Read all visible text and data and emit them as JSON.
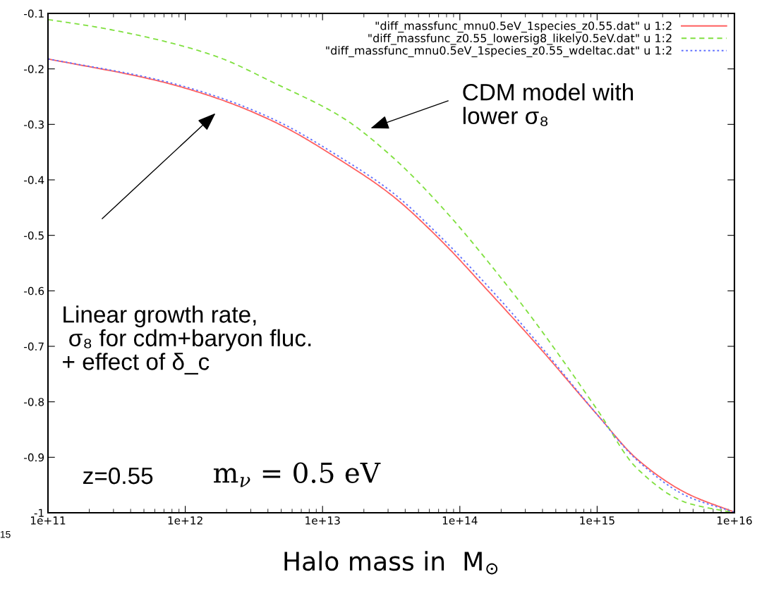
{
  "chart_data": {
    "type": "line",
    "xlabel": "Halo mass in  M$_{⊙}$",
    "log": "x",
    "legend": "top right",
    "grid": false,
    "xlim": [
      100000000000.0,
      1e+16
    ],
    "ylim": [
      -1,
      -0.1
    ],
    "xticks": [
      {
        "value": 100000000000.0,
        "label": "1e+11"
      },
      {
        "value": 1000000000000.0,
        "label": "1e+12"
      },
      {
        "value": 10000000000000.0,
        "label": "1e+13"
      },
      {
        "value": 100000000000000.0,
        "label": "1e+14"
      },
      {
        "value": 1000000000000000.0,
        "label": "1e+15"
      },
      {
        "value": 1e+16,
        "label": "1e+16"
      }
    ],
    "yticks": [
      -1,
      -0.9,
      -0.8,
      -0.7,
      -0.6,
      -0.5,
      -0.4,
      -0.3,
      -0.2,
      -0.1
    ],
    "series": [
      {
        "name": "\"diff_massfunc_mnu0.5eV_1species_z0.55.dat\" u 1:2",
        "color": "#ff6060",
        "line_style": "solid",
        "x": [
          100000000000.0,
          620000000000.0,
          1660000000000.0,
          4500000000000.0,
          14000000000000.0,
          32000000000000.0,
          72000000000000.0,
          166000000000000.0,
          370000000000000.0,
          1000000000000000.0,
          1950000000000000.0,
          4500000000000000.0,
          1e+16
        ],
        "values": [
          -0.182,
          -0.221,
          -0.252,
          -0.296,
          -0.367,
          -0.428,
          -0.508,
          -0.604,
          -0.699,
          -0.823,
          -0.903,
          -0.965,
          -0.999
        ]
      },
      {
        "name": "\"diff_massfunc_z0.55_lowersig8_likely0.5eV.dat\" u 1:2",
        "color": "#80e040",
        "line_style": "dashed",
        "x": [
          100000000000.0,
          230000000000.0,
          620000000000.0,
          1660000000000.0,
          4500000000000.0,
          14000000000000.0,
          32000000000000.0,
          72000000000000.0,
          230000000000000.0,
          370000000000000.0,
          1000000000000000.0,
          1950000000000000.0,
          4500000000000000.0,
          1e+16
        ],
        "values": [
          -0.111,
          -0.125,
          -0.147,
          -0.177,
          -0.226,
          -0.288,
          -0.358,
          -0.446,
          -0.596,
          -0.663,
          -0.814,
          -0.92,
          -0.982,
          -1.0
        ]
      },
      {
        "name": "\"diff_massfunc_mnu0.5eV_1species_z0.55_wdeltac.dat\" u 1:2",
        "color": "#6070ff",
        "line_style": "dotted",
        "x": [
          100000000000.0,
          620000000000.0,
          1660000000000.0,
          4500000000000.0,
          14000000000000.0,
          32000000000000.0,
          72000000000000.0,
          166000000000000.0,
          370000000000000.0,
          1000000000000000.0,
          1950000000000000.0,
          4500000000000000.0,
          1e+16
        ],
        "values": [
          -0.182,
          -0.219,
          -0.249,
          -0.292,
          -0.362,
          -0.422,
          -0.502,
          -0.596,
          -0.694,
          -0.823,
          -0.905,
          -0.97,
          -0.999
        ]
      }
    ],
    "annotations": [
      "CDM model with\nlower σ₈",
      "Linear growth rate,\n σ₈ for cdm+baryon fluc.\n+ effect of δ_c",
      "z=0.55",
      "m$_{ν}$ = 0.5 eV",
      "15"
    ]
  }
}
